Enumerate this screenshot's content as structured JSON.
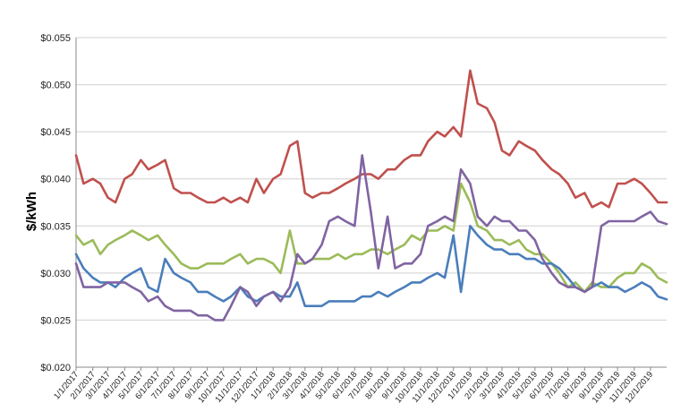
{
  "chart_data": {
    "type": "line",
    "title": "",
    "xlabel": "",
    "ylabel": "$/kWh",
    "grid": true,
    "legend": "none",
    "ylim": [
      0.02,
      0.055
    ],
    "y_ticks": [
      "$0.020",
      "$0.025",
      "$0.030",
      "$0.035",
      "$0.040",
      "$0.045",
      "$0.050",
      "$0.055"
    ],
    "x_tick_labels": [
      "1/1/2017",
      "2/1/2017",
      "3/1/2017",
      "4/1/2017",
      "5/1/2017",
      "6/1/2017",
      "7/1/2017",
      "8/1/2017",
      "9/1/2017",
      "10/1/2017",
      "11/1/2017",
      "12/1/2017",
      "1/1/2018",
      "2/1/2018",
      "3/1/2018",
      "4/1/2018",
      "5/1/2018",
      "6/1/2018",
      "7/1/2018",
      "8/1/2018",
      "9/1/2018",
      "10/1/2018",
      "11/1/2018",
      "12/1/2018",
      "1/1/2019",
      "2/1/2019",
      "3/1/2019",
      "4/1/2019",
      "5/1/2019",
      "6/1/2019",
      "7/1/2019",
      "8/1/2019",
      "9/1/2019",
      "10/1/2019",
      "11/1/2019",
      "12/1/2019"
    ],
    "x": [
      "2017-01-01",
      "2017-01-15",
      "2017-02-01",
      "2017-02-15",
      "2017-03-01",
      "2017-03-15",
      "2017-04-01",
      "2017-04-15",
      "2017-05-01",
      "2017-05-15",
      "2017-06-01",
      "2017-06-15",
      "2017-07-01",
      "2017-07-15",
      "2017-08-01",
      "2017-08-15",
      "2017-09-01",
      "2017-09-15",
      "2017-10-01",
      "2017-10-15",
      "2017-11-01",
      "2017-11-15",
      "2017-12-01",
      "2017-12-15",
      "2018-01-01",
      "2018-01-15",
      "2018-02-01",
      "2018-02-15",
      "2018-03-01",
      "2018-03-15",
      "2018-04-01",
      "2018-04-15",
      "2018-05-01",
      "2018-05-15",
      "2018-06-01",
      "2018-06-15",
      "2018-07-01",
      "2018-07-15",
      "2018-08-01",
      "2018-08-15",
      "2018-09-01",
      "2018-09-15",
      "2018-10-01",
      "2018-10-15",
      "2018-11-01",
      "2018-11-15",
      "2018-12-01",
      "2018-12-15",
      "2019-01-01",
      "2019-01-15",
      "2019-02-01",
      "2019-02-15",
      "2019-03-01",
      "2019-03-15",
      "2019-04-01",
      "2019-04-15",
      "2019-05-01",
      "2019-05-15",
      "2019-06-01",
      "2019-06-15",
      "2019-07-01",
      "2019-07-15",
      "2019-08-01",
      "2019-08-15",
      "2019-09-01",
      "2019-09-15",
      "2019-10-01",
      "2019-10-15",
      "2019-11-01",
      "2019-11-15",
      "2019-12-01",
      "2019-12-15",
      "2019-12-31"
    ],
    "series": [
      {
        "color": "#c0504d",
        "values": [
          0.0425,
          0.0395,
          0.04,
          0.0395,
          0.038,
          0.0375,
          0.04,
          0.0405,
          0.042,
          0.041,
          0.0415,
          0.042,
          0.039,
          0.0385,
          0.0385,
          0.038,
          0.0375,
          0.0375,
          0.038,
          0.0375,
          0.038,
          0.0375,
          0.04,
          0.0385,
          0.04,
          0.0405,
          0.0435,
          0.044,
          0.0385,
          0.038,
          0.0385,
          0.0385,
          0.039,
          0.0395,
          0.04,
          0.0405,
          0.0405,
          0.04,
          0.041,
          0.041,
          0.042,
          0.0425,
          0.0425,
          0.044,
          0.045,
          0.0445,
          0.0455,
          0.0445,
          0.0515,
          0.048,
          0.0475,
          0.046,
          0.043,
          0.0425,
          0.044,
          0.0435,
          0.043,
          0.042,
          0.041,
          0.0405,
          0.0395,
          0.038,
          0.0385,
          0.037,
          0.0375,
          0.037,
          0.0395,
          0.0395,
          0.04,
          0.0395,
          0.0385,
          0.0375,
          0.0375
        ]
      },
      {
        "color": "#9bbb59",
        "values": [
          0.034,
          0.033,
          0.0335,
          0.032,
          0.033,
          0.0335,
          0.034,
          0.0345,
          0.034,
          0.0335,
          0.034,
          0.033,
          0.032,
          0.031,
          0.0305,
          0.0305,
          0.031,
          0.031,
          0.031,
          0.0315,
          0.032,
          0.031,
          0.0315,
          0.0315,
          0.031,
          0.03,
          0.0345,
          0.031,
          0.031,
          0.0315,
          0.0315,
          0.0315,
          0.032,
          0.0315,
          0.032,
          0.032,
          0.0325,
          0.0325,
          0.032,
          0.0325,
          0.033,
          0.034,
          0.0335,
          0.0345,
          0.0345,
          0.035,
          0.0345,
          0.0395,
          0.0375,
          0.035,
          0.0345,
          0.0335,
          0.0335,
          0.033,
          0.0335,
          0.0325,
          0.032,
          0.032,
          0.031,
          0.03,
          0.0285,
          0.029,
          0.028,
          0.029,
          0.0285,
          0.0285,
          0.0295,
          0.03,
          0.03,
          0.031,
          0.0305,
          0.0295,
          0.029
        ]
      },
      {
        "color": "#4a7ebb",
        "values": [
          0.032,
          0.0305,
          0.0295,
          0.029,
          0.029,
          0.0285,
          0.0295,
          0.03,
          0.0305,
          0.0285,
          0.028,
          0.0315,
          0.03,
          0.0295,
          0.029,
          0.028,
          0.028,
          0.0275,
          0.027,
          0.0275,
          0.0285,
          0.0275,
          0.027,
          0.0275,
          0.028,
          0.0275,
          0.0275,
          0.029,
          0.0265,
          0.0265,
          0.0265,
          0.027,
          0.027,
          0.027,
          0.027,
          0.0275,
          0.0275,
          0.028,
          0.0275,
          0.028,
          0.0285,
          0.029,
          0.029,
          0.0295,
          0.03,
          0.0295,
          0.034,
          0.028,
          0.035,
          0.034,
          0.033,
          0.0325,
          0.0325,
          0.032,
          0.032,
          0.0315,
          0.0315,
          0.031,
          0.031,
          0.0305,
          0.0295,
          0.0285,
          0.028,
          0.0285,
          0.029,
          0.0285,
          0.0285,
          0.028,
          0.0285,
          0.029,
          0.0285,
          0.0275,
          0.0272
        ]
      },
      {
        "color": "#8064a2",
        "values": [
          0.031,
          0.0285,
          0.0285,
          0.0285,
          0.029,
          0.029,
          0.029,
          0.0285,
          0.028,
          0.027,
          0.0275,
          0.0265,
          0.026,
          0.026,
          0.026,
          0.0255,
          0.0255,
          0.025,
          0.025,
          0.0265,
          0.0285,
          0.028,
          0.0265,
          0.0275,
          0.028,
          0.027,
          0.0285,
          0.032,
          0.031,
          0.0315,
          0.033,
          0.0355,
          0.036,
          0.0355,
          0.035,
          0.0425,
          0.0365,
          0.0305,
          0.036,
          0.0305,
          0.031,
          0.031,
          0.032,
          0.035,
          0.0355,
          0.036,
          0.0355,
          0.041,
          0.0395,
          0.036,
          0.035,
          0.036,
          0.0355,
          0.0355,
          0.0345,
          0.0345,
          0.0335,
          0.0315,
          0.03,
          0.029,
          0.0285,
          0.0285,
          0.028,
          0.0285,
          0.035,
          0.0355,
          0.0355,
          0.0355,
          0.0355,
          0.036,
          0.0365,
          0.0355,
          0.0352
        ]
      }
    ]
  }
}
